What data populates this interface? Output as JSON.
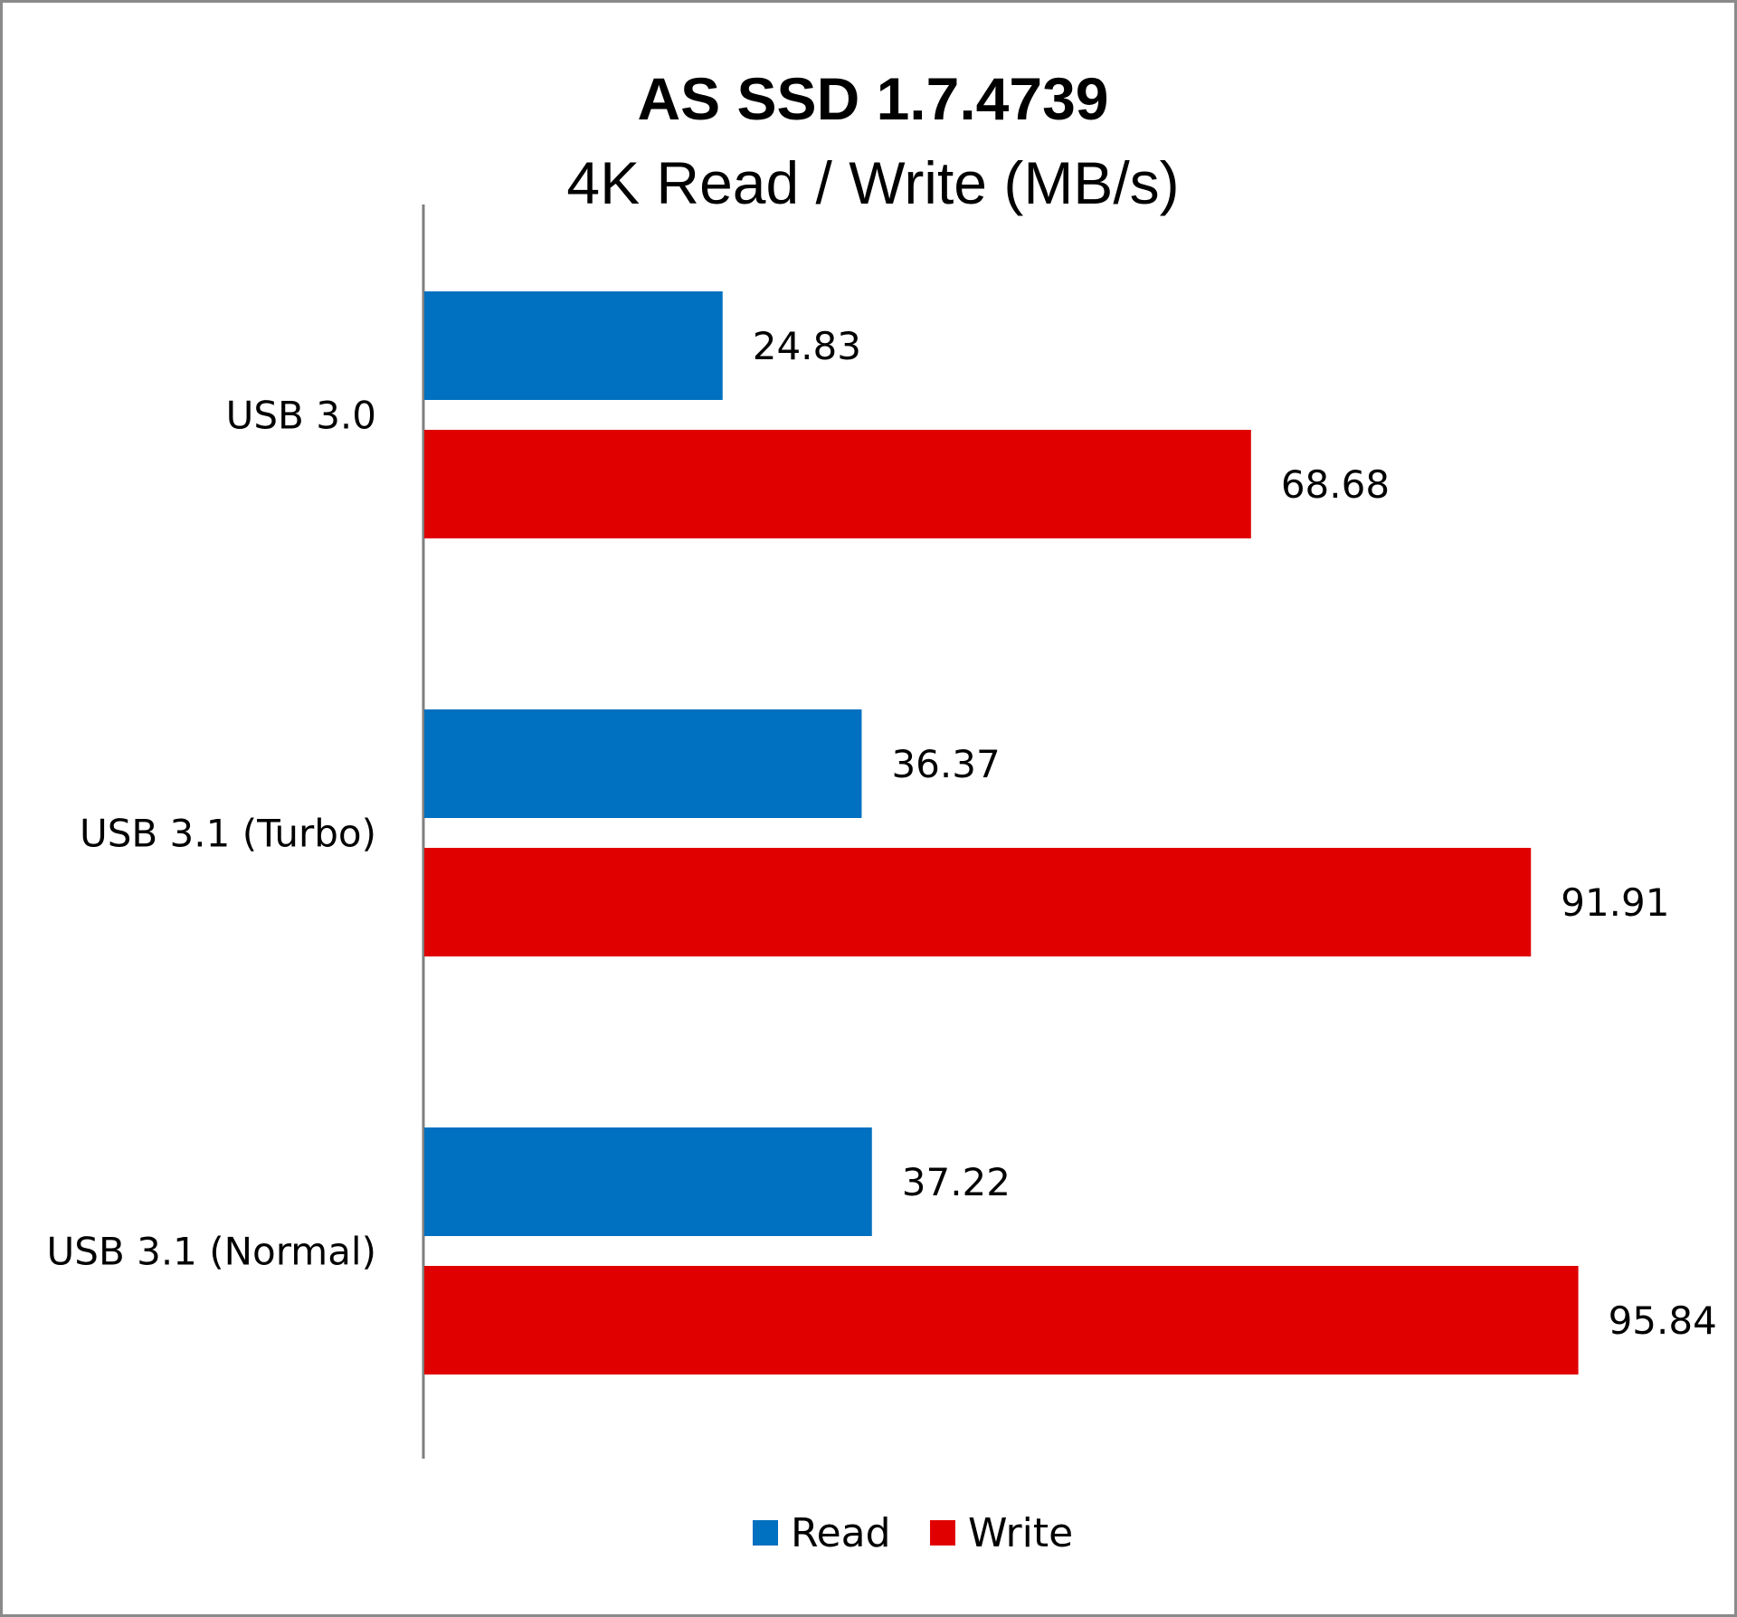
{
  "chart_data": {
    "type": "bar",
    "orientation": "horizontal",
    "title": "AS SSD 1.7.4739",
    "subtitle": "4K Read / Write (MB/s)",
    "categories": [
      "USB 3.0",
      "USB 3.1 (Turbo)",
      "USB 3.1 (Normal)"
    ],
    "series": [
      {
        "name": "Read",
        "color": "#0070c0",
        "values": [
          24.83,
          36.37,
          37.22
        ],
        "labels": [
          "24.83",
          "36.37",
          "37.22"
        ]
      },
      {
        "name": "Write",
        "color": "#e00000",
        "values": [
          68.68,
          91.91,
          95.84
        ],
        "labels": [
          "68.68",
          "91.91",
          "95.84"
        ]
      }
    ],
    "xlim": [
      0,
      100
    ],
    "grid": false,
    "data_labels": true,
    "legend_position": "bottom"
  }
}
